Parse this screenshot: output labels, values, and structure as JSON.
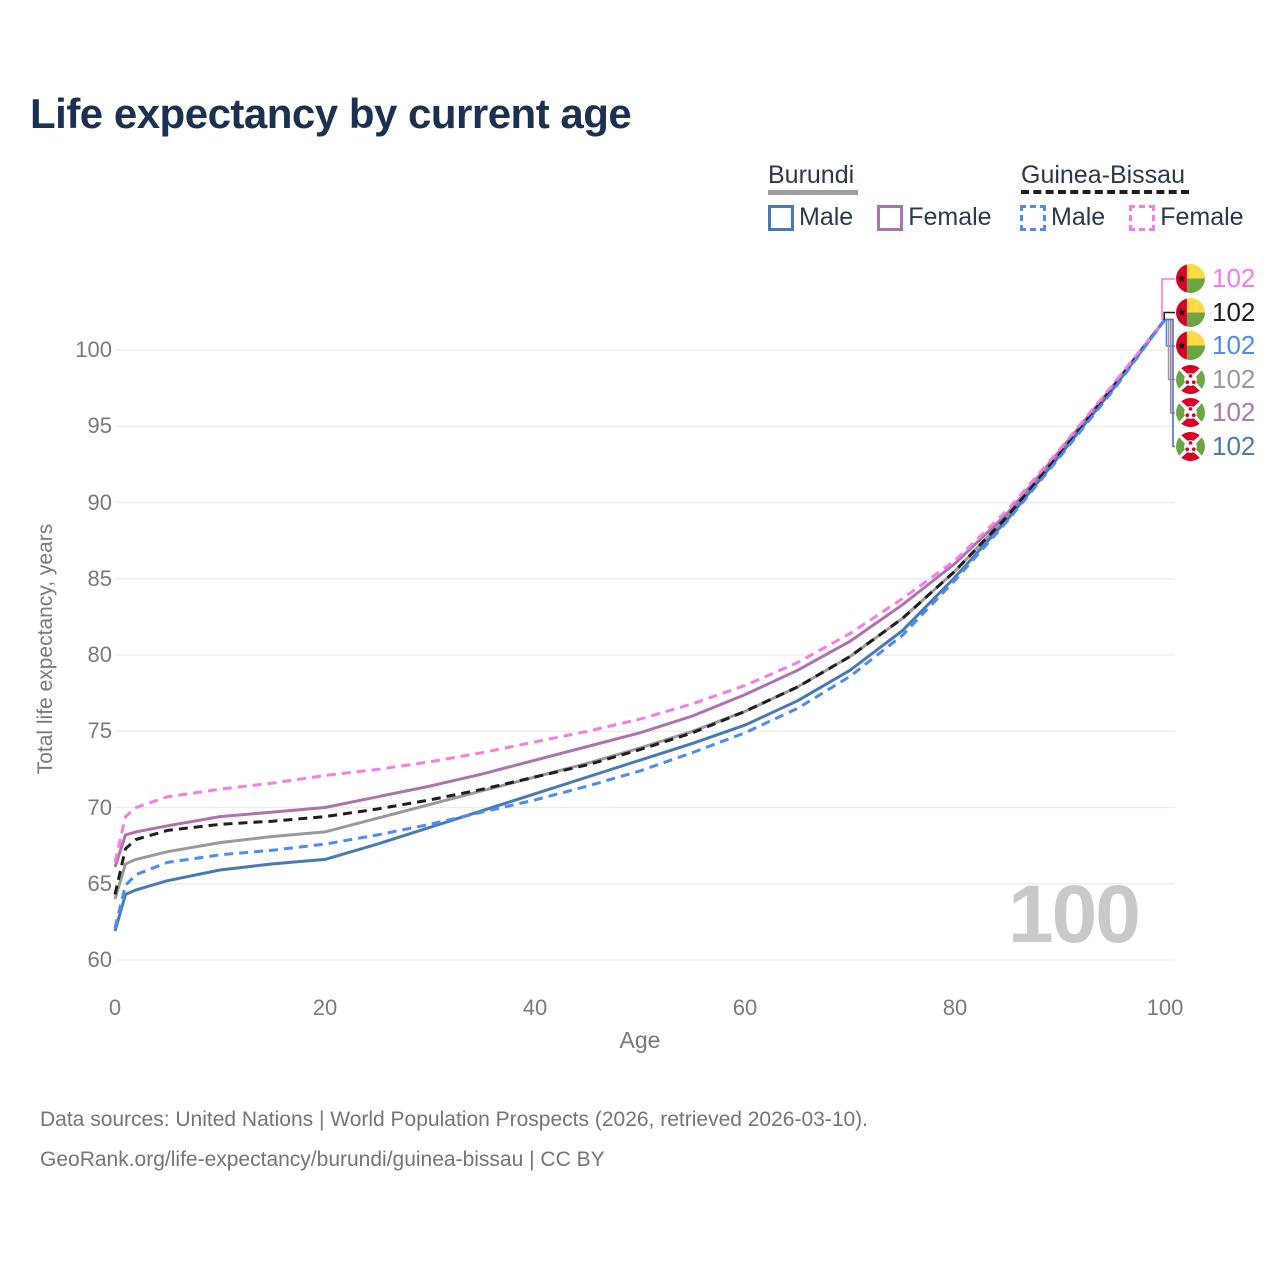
{
  "header": {
    "title": "Life expectancy by current age"
  },
  "legend": {
    "groups": [
      {
        "country": "Burundi",
        "line_style": "solid",
        "underline_color": "#9e9e9e",
        "entries": [
          {
            "label": "Male",
            "color": "#4a7ab5"
          },
          {
            "label": "Female",
            "color": "#ae72ae"
          }
        ]
      },
      {
        "country": "Guinea-Bissau",
        "line_style": "dashed",
        "underline_color": "#1f1f1f",
        "entries": [
          {
            "label": "Male",
            "color": "#4d8bf5"
          },
          {
            "label": "Female",
            "color": "#f77ce9"
          }
        ]
      }
    ]
  },
  "chart_data": {
    "type": "line",
    "title": "Life expectancy by current age",
    "xlabel": "Age",
    "ylabel": "Total life expectancy, years",
    "xlim": [
      0,
      100
    ],
    "ylim": [
      60,
      103
    ],
    "x_ticks": [
      0,
      20,
      40,
      60,
      80,
      100
    ],
    "y_ticks": [
      60,
      65,
      70,
      75,
      80,
      85,
      90,
      95,
      100
    ],
    "grid": "horizontal-only",
    "legend_position": "top-right",
    "watermark": "100",
    "ages": [
      0,
      1,
      2,
      5,
      10,
      15,
      20,
      25,
      30,
      35,
      40,
      45,
      50,
      55,
      60,
      65,
      70,
      75,
      80,
      85,
      90,
      95,
      100
    ],
    "series": [
      {
        "name": "Burundi Total",
        "country": "Burundi",
        "sex": "All",
        "style": "solid",
        "color": "#9a9a9a",
        "end_value": 102,
        "values": [
          64.0,
          66.3,
          66.6,
          67.1,
          67.7,
          68.1,
          68.4,
          69.3,
          70.2,
          71.1,
          72.0,
          72.9,
          73.9,
          75.0,
          76.3,
          77.9,
          79.9,
          82.4,
          85.5,
          89.1,
          93.2,
          97.5,
          102
        ]
      },
      {
        "name": "Burundi Female",
        "country": "Burundi",
        "sex": "Female",
        "style": "solid",
        "color": "#ae72ae",
        "end_value": 102,
        "values": [
          66.1,
          68.2,
          68.4,
          68.8,
          69.4,
          69.7,
          70.0,
          70.7,
          71.4,
          72.2,
          73.1,
          74.0,
          74.9,
          76.0,
          77.4,
          79.0,
          80.9,
          83.3,
          86.0,
          89.3,
          93.4,
          97.6,
          102
        ]
      },
      {
        "name": "Burundi Male",
        "country": "Burundi",
        "sex": "Male",
        "style": "solid",
        "color": "#4a7ab5",
        "end_value": 102,
        "values": [
          61.9,
          64.3,
          64.6,
          65.2,
          65.9,
          66.3,
          66.6,
          67.6,
          68.7,
          69.8,
          70.9,
          72.0,
          73.1,
          74.2,
          75.4,
          77.0,
          79.0,
          81.6,
          85.1,
          88.9,
          93.1,
          97.4,
          102
        ]
      },
      {
        "name": "Guinea-Bissau Total",
        "country": "Guinea-Bissau",
        "sex": "All",
        "style": "dashed",
        "color": "#1f1f1f",
        "end_value": 102,
        "values": [
          64.3,
          67.3,
          67.9,
          68.5,
          68.9,
          69.1,
          69.4,
          69.9,
          70.5,
          71.2,
          72.0,
          72.8,
          73.8,
          74.9,
          76.3,
          77.9,
          79.9,
          82.4,
          85.5,
          89.1,
          93.2,
          97.5,
          102
        ]
      },
      {
        "name": "Guinea-Bissau Female",
        "country": "Guinea-Bissau",
        "sex": "Female",
        "style": "dashed",
        "color": "#f77ce9",
        "end_value": 102,
        "values": [
          66.4,
          69.4,
          70.0,
          70.7,
          71.2,
          71.6,
          72.1,
          72.5,
          73.0,
          73.6,
          74.3,
          75.0,
          75.8,
          76.8,
          78.0,
          79.5,
          81.4,
          83.7,
          86.2,
          89.5,
          93.5,
          97.7,
          102
        ]
      },
      {
        "name": "Guinea-Bissau Male",
        "country": "Guinea-Bissau",
        "sex": "Male",
        "style": "dashed",
        "color": "#4d8bf5",
        "end_value": 102,
        "values": [
          62.1,
          64.9,
          65.6,
          66.4,
          66.9,
          67.2,
          67.6,
          68.2,
          68.9,
          69.7,
          70.5,
          71.4,
          72.4,
          73.6,
          74.9,
          76.5,
          78.6,
          81.3,
          84.9,
          88.8,
          93.0,
          97.3,
          102
        ]
      }
    ]
  },
  "end_labels": [
    {
      "value": "102",
      "color": "#f77ce9",
      "flag": "guinea-bissau",
      "series": "Guinea-Bissau Female"
    },
    {
      "value": "102",
      "color": "#1f1f1f",
      "flag": "guinea-bissau",
      "series": "Guinea-Bissau Total"
    },
    {
      "value": "102",
      "color": "#4d8bf5",
      "flag": "guinea-bissau",
      "series": "Guinea-Bissau Male"
    },
    {
      "value": "102",
      "color": "#9a9a9a",
      "flag": "burundi",
      "series": "Burundi Total"
    },
    {
      "value": "102",
      "color": "#aa7bac",
      "flag": "burundi",
      "series": "Burundi Female"
    },
    {
      "value": "102",
      "color": "#4a7ab5",
      "flag": "burundi",
      "series": "Burundi Male"
    }
  ],
  "footer": {
    "line1": "Data sources: United Nations | World Population Prospects (2026, retrieved 2026-03-10).",
    "line2": "GeoRank.org/life-expectancy/burundi/guinea-bissau | CC BY"
  }
}
